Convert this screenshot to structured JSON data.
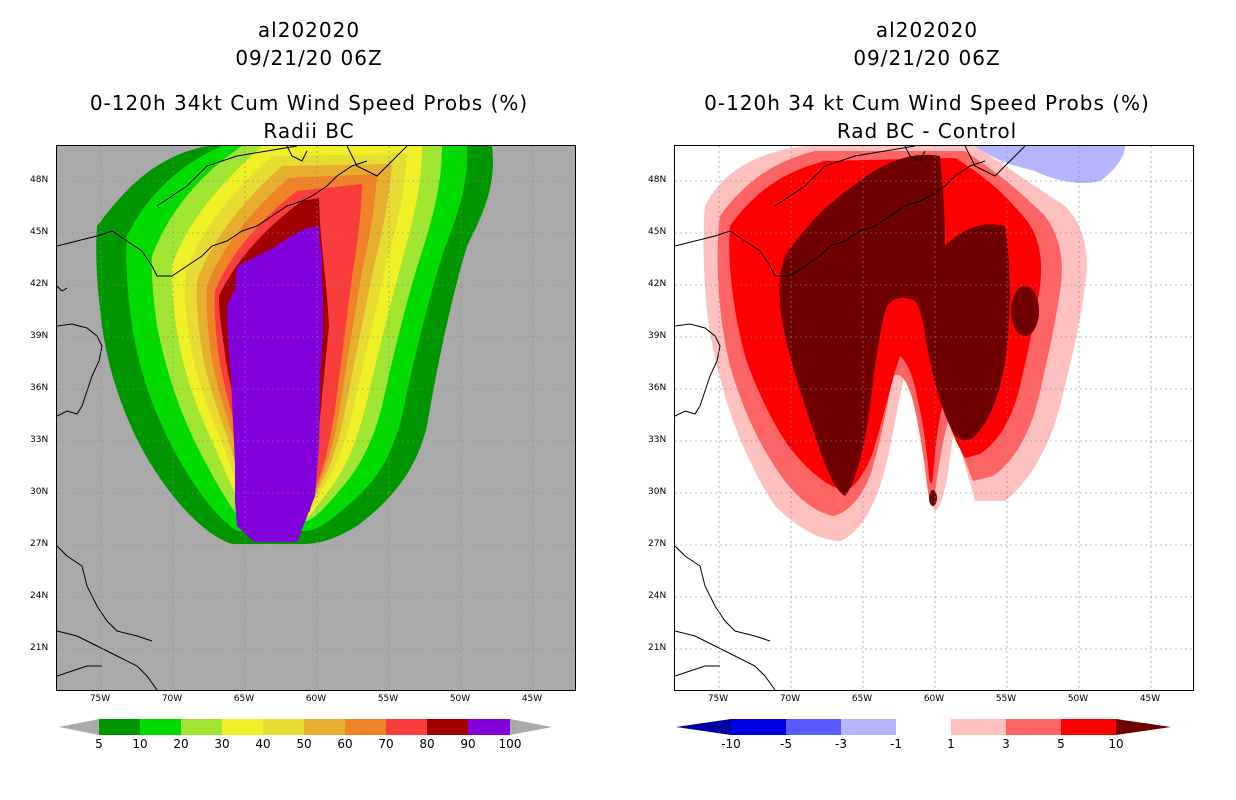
{
  "left": {
    "title_lines": [
      "al202020",
      "09/21/20 06Z",
      "0-120h 34kt Cum Wind Speed Probs (%)",
      "Radii BC"
    ],
    "lat_labels": [
      "48N",
      "45N",
      "42N",
      "39N",
      "36N",
      "33N",
      "30N",
      "27N",
      "24N",
      "21N"
    ],
    "lon_labels": [
      "75W",
      "70W",
      "65W",
      "60W",
      "55W",
      "50W",
      "45W"
    ],
    "colorbar": {
      "colors": [
        "#009600",
        "#00dc00",
        "#a0e632",
        "#f0f028",
        "#e6dc32",
        "#e6af2d",
        "#f08228",
        "#fa3c3c",
        "#a00000",
        "#8200dc"
      ],
      "labels": [
        "5",
        "10",
        "20",
        "30",
        "40",
        "50",
        "60",
        "70",
        "80",
        "90",
        "100"
      ],
      "extend_colors": [
        "#aaaaaa",
        "#aaaaaa"
      ]
    },
    "background_color": "#aaaaaa"
  },
  "right": {
    "title_lines": [
      "al202020",
      "09/21/20 06Z",
      "0-120h 34 kt Cum Wind Speed Probs (%)",
      "Rad BC - Control"
    ],
    "lat_labels": [
      "48N",
      "45N",
      "42N",
      "39N",
      "36N",
      "33N",
      "30N",
      "27N",
      "24N",
      "21N"
    ],
    "lon_labels": [
      "75W",
      "70W",
      "65W",
      "60W",
      "55W",
      "50W",
      "45W"
    ],
    "colorbar": {
      "colors": [
        "#0000e6",
        "#5a5aff",
        "#b4b4ff",
        "#ffffff",
        "#ffc0c0",
        "#ff6464",
        "#ff0000"
      ],
      "labels": [
        "-10",
        "-5",
        "-3",
        "-1",
        "1",
        "3",
        "5",
        "10"
      ],
      "extend_colors": [
        "#0000a0",
        "#6e0000"
      ]
    },
    "background_color": "#ffffff"
  }
}
